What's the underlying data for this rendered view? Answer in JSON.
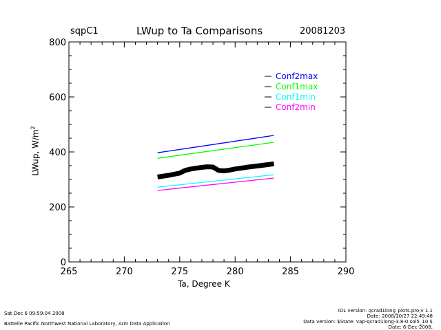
{
  "header": {
    "site": "sqpC1",
    "date": "20081203"
  },
  "footer": {
    "run_time": "Sat Dec  6 09:59:04 2008",
    "org": "Battelle Pacific Northwest National Laboratory, Arm Data Application",
    "idl_version": "IDL version: qcrad1long_plots.pro,v 1.1",
    "idl_date": "Date: 2008/10/27 22:49:48",
    "data_version": "Data version: $State: vap-qcrad1long-3.8-0.sol5_10 $",
    "data_date": "Date: 6-Dec-2008,"
  },
  "chart_data": {
    "type": "line",
    "title": "LWup to Ta Comparisons",
    "xlabel": "Ta, Degree K",
    "ylabel": "LWup, W/m",
    "ylabel_sup": "2",
    "xlim": [
      265,
      290
    ],
    "ylim": [
      0,
      800
    ],
    "xticks": [
      "265",
      "270",
      "275",
      "280",
      "285",
      "290"
    ],
    "yticks": [
      "0",
      "200",
      "400",
      "600",
      "800"
    ],
    "legend_position": "top-right",
    "series": [
      {
        "name": "Conf2max",
        "color": "#0000ff",
        "x": [
          273,
          283.5
        ],
        "y": [
          397,
          460
        ]
      },
      {
        "name": "Conf1max",
        "color": "#00ff00",
        "x": [
          273,
          283.5
        ],
        "y": [
          377,
          435
        ]
      },
      {
        "name": "Conf1min",
        "color": "#00ffff",
        "x": [
          273,
          283.5
        ],
        "y": [
          272,
          317
        ]
      },
      {
        "name": "Conf2min",
        "color": "#ff00ff",
        "x": [
          273,
          283.5
        ],
        "y": [
          260,
          305
        ]
      },
      {
        "name": "LWup",
        "color": "#000000",
        "legend": false,
        "x": [
          273,
          274,
          275,
          275.5,
          276,
          276.5,
          277,
          277.5,
          278,
          278.5,
          279,
          279.5,
          280,
          281,
          282,
          283,
          283.5
        ],
        "y": [
          309,
          315,
          323,
          333,
          338,
          341,
          344,
          346,
          345,
          333,
          331,
          334,
          338,
          344,
          349,
          354,
          357
        ]
      }
    ]
  }
}
